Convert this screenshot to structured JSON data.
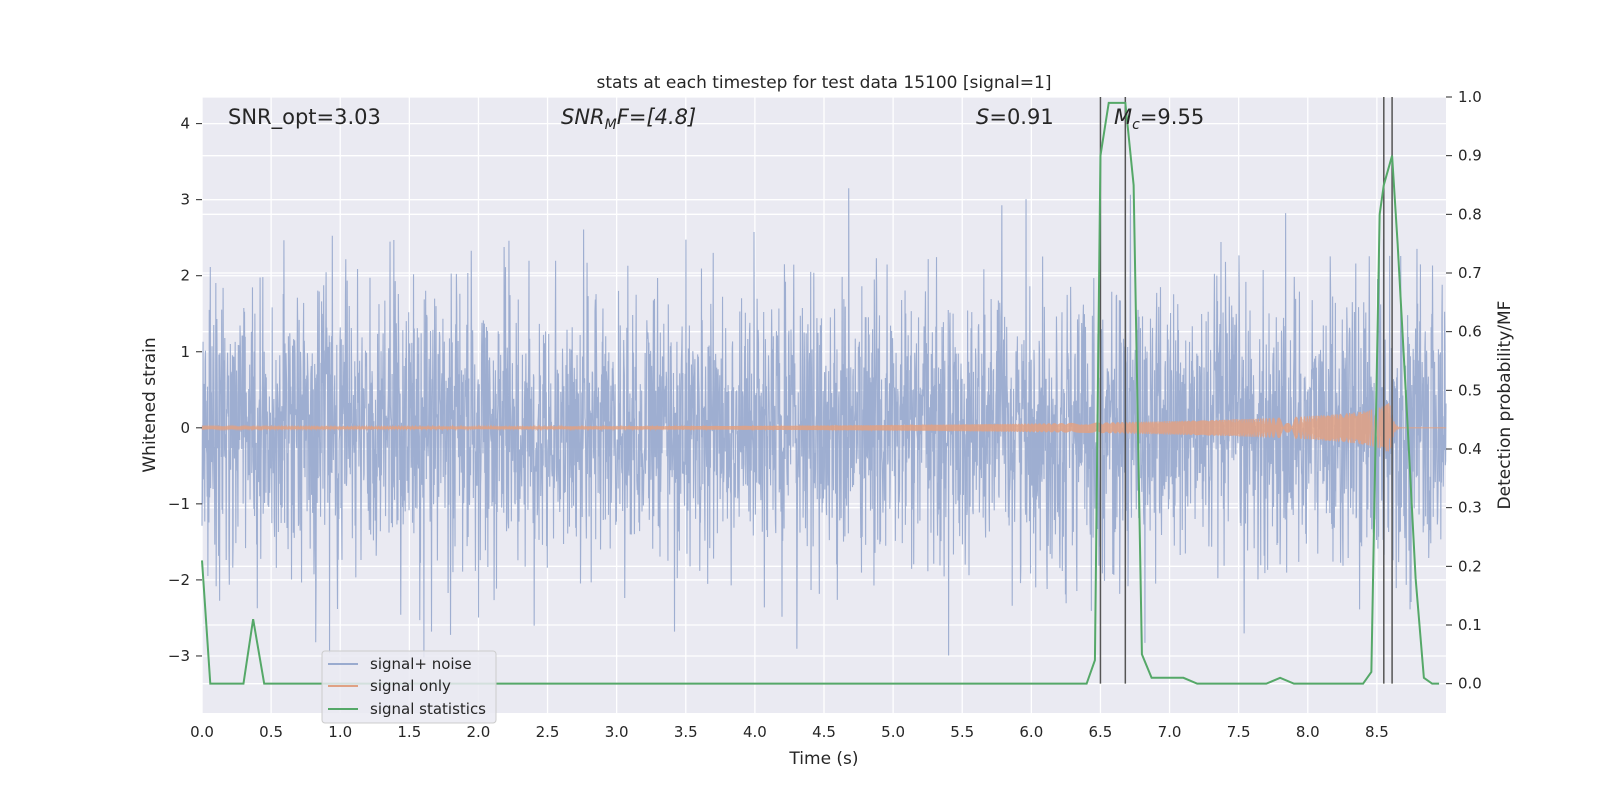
{
  "chart_data": {
    "type": "line",
    "title": "stats at each timestep for test data 15100 [signal=1]",
    "xlabel": "Time (s)",
    "ylabel_left": "Whitened strain",
    "ylabel_right": "Detection probability/MF",
    "xlim": [
      0.0,
      9.0
    ],
    "ylim_left": [
      -3.75,
      4.35
    ],
    "ylim_right": [
      -0.05,
      1.0
    ],
    "x_ticks": [
      "0.0",
      "0.5",
      "1.0",
      "1.5",
      "2.0",
      "2.5",
      "3.0",
      "3.5",
      "4.0",
      "4.5",
      "5.0",
      "5.5",
      "6.0",
      "6.5",
      "7.0",
      "7.5",
      "8.0",
      "8.5"
    ],
    "x_tick_values": [
      0.0,
      0.5,
      1.0,
      1.5,
      2.0,
      2.5,
      3.0,
      3.5,
      4.0,
      4.5,
      5.0,
      5.5,
      6.0,
      6.5,
      7.0,
      7.5,
      8.0,
      8.5
    ],
    "y_left_ticks": [
      "4",
      "3",
      "2",
      "1",
      "0",
      "−1",
      "−2",
      "−3"
    ],
    "y_left_tick_values": [
      4,
      3,
      2,
      1,
      0,
      -1,
      -2,
      -3
    ],
    "y_right_ticks": [
      "1.0",
      "0.9",
      "0.8",
      "0.7",
      "0.6",
      "0.5",
      "0.4",
      "0.3",
      "0.2",
      "0.1",
      "0.0"
    ],
    "y_right_tick_values": [
      1.0,
      0.9,
      0.8,
      0.7,
      0.6,
      0.5,
      0.4,
      0.3,
      0.2,
      0.1,
      0.0
    ],
    "grid": true,
    "legend_position": "lower-left",
    "annotations": {
      "snr_opt": "SNR_opt=3.03",
      "snr_mf_main": "SNR",
      "snr_mf_sub": "M",
      "snr_mf_rest": "F=[4.8]",
      "s_main": "S",
      "s_rest": "=0.91",
      "mc_main": "M",
      "mc_sub": "c",
      "mc_rest": "=9.55"
    },
    "vertical_markers": [
      6.5,
      6.68,
      8.55,
      8.61
    ],
    "series": [
      {
        "name": "signal+ noise",
        "axis": "left",
        "color": "#9aabcf",
        "description_values": "whitened noise, amplitude mostly within ±2 with peaks near 3.1"
      },
      {
        "name": "signal only",
        "axis": "left",
        "color": "#e0a184",
        "chirp_start": 0.0,
        "chirp_merger": 8.6,
        "peak_amplitude": 0.35
      },
      {
        "name": "signal statistics",
        "axis": "right",
        "color": "#55a868",
        "x": [
          0.0,
          0.06,
          0.1,
          0.2,
          0.3,
          0.37,
          0.45,
          0.5,
          1.0,
          2.0,
          3.0,
          4.0,
          5.0,
          6.0,
          6.4,
          6.46,
          6.5,
          6.56,
          6.62,
          6.68,
          6.74,
          6.8,
          6.87,
          6.93,
          7.0,
          7.1,
          7.2,
          7.3,
          7.4,
          7.5,
          7.6,
          7.7,
          7.8,
          7.9,
          8.0,
          8.1,
          8.2,
          8.3,
          8.4,
          8.46,
          8.52,
          8.55,
          8.61,
          8.65,
          8.72,
          8.78,
          8.84,
          8.9,
          8.95
        ],
        "values": [
          0.21,
          0.0,
          0.0,
          0.0,
          0.0,
          0.11,
          0.0,
          0.0,
          0.0,
          0.0,
          0.0,
          0.0,
          0.0,
          0.0,
          0.0,
          0.04,
          0.9,
          0.99,
          0.99,
          0.99,
          0.85,
          0.05,
          0.01,
          0.01,
          0.01,
          0.01,
          0.0,
          0.0,
          0.0,
          0.0,
          0.0,
          0.0,
          0.01,
          0.0,
          0.0,
          0.0,
          0.0,
          0.0,
          0.0,
          0.02,
          0.8,
          0.85,
          0.9,
          0.75,
          0.45,
          0.18,
          0.01,
          0.0,
          0.0
        ]
      }
    ]
  }
}
